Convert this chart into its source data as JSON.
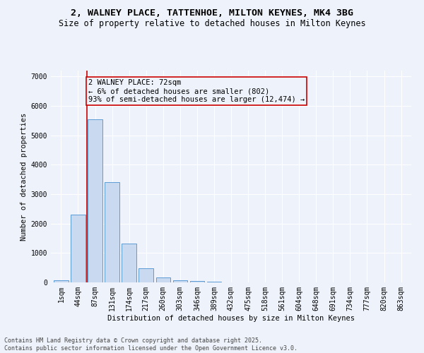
{
  "title_line1": "2, WALNEY PLACE, TATTENHOE, MILTON KEYNES, MK4 3BG",
  "title_line2": "Size of property relative to detached houses in Milton Keynes",
  "xlabel": "Distribution of detached houses by size in Milton Keynes",
  "ylabel": "Number of detached properties",
  "categories": [
    "1sqm",
    "44sqm",
    "87sqm",
    "131sqm",
    "174sqm",
    "217sqm",
    "260sqm",
    "303sqm",
    "346sqm",
    "389sqm",
    "432sqm",
    "475sqm",
    "518sqm",
    "561sqm",
    "604sqm",
    "648sqm",
    "691sqm",
    "734sqm",
    "777sqm",
    "820sqm",
    "863sqm"
  ],
  "bar_values": [
    75,
    2300,
    5550,
    3420,
    1330,
    490,
    175,
    80,
    50,
    25,
    0,
    0,
    0,
    0,
    0,
    0,
    0,
    0,
    0,
    0,
    0
  ],
  "bar_color": "#c8d9f0",
  "bar_edgecolor": "#5b9bd5",
  "property_line_x": 1.5,
  "annotation_title": "2 WALNEY PLACE: 72sqm",
  "annotation_line1": "← 6% of detached houses are smaller (802)",
  "annotation_line2": "93% of semi-detached houses are larger (12,474) →",
  "vline_color": "#cc0000",
  "annotation_box_edgecolor": "#cc0000",
  "ylim": [
    0,
    7200
  ],
  "yticks": [
    0,
    1000,
    2000,
    3000,
    4000,
    5000,
    6000,
    7000
  ],
  "background_color": "#eef2fa",
  "footer_line1": "Contains HM Land Registry data © Crown copyright and database right 2025.",
  "footer_line2": "Contains public sector information licensed under the Open Government Licence v3.0.",
  "title_fontsize": 9.5,
  "subtitle_fontsize": 8.5,
  "axis_label_fontsize": 7.5,
  "tick_fontsize": 7,
  "annotation_fontsize": 7.5,
  "footer_fontsize": 6
}
